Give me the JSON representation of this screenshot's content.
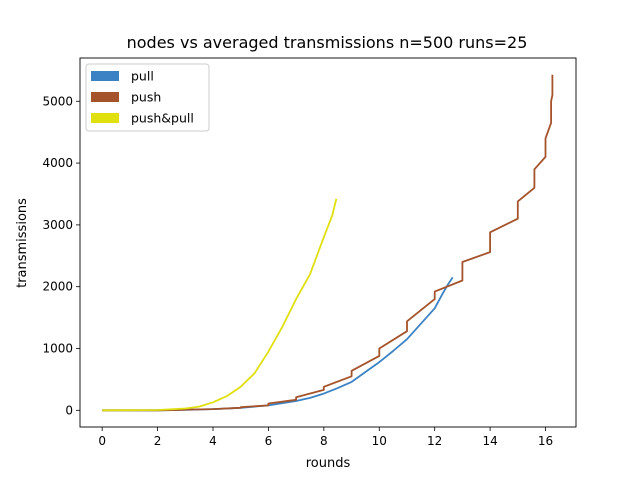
{
  "chart_data": {
    "type": "line",
    "title": "nodes vs averaged transmissions n=500 runs=25",
    "xlabel": "rounds",
    "ylabel": "transmissions",
    "xlim": [
      -0.8,
      17.1
    ],
    "ylim": [
      -270,
      5700
    ],
    "xticks": [
      0,
      2,
      4,
      6,
      8,
      10,
      12,
      14,
      16
    ],
    "yticks": [
      0,
      1000,
      2000,
      3000,
      4000,
      5000
    ],
    "grid": false,
    "legend_position": "top-left",
    "series": [
      {
        "name": "pull",
        "color": "#3a82c4",
        "style": "smooth",
        "points": [
          [
            0,
            0
          ],
          [
            1,
            0
          ],
          [
            2,
            0
          ],
          [
            3,
            6
          ],
          [
            4,
            20
          ],
          [
            5,
            40
          ],
          [
            6,
            80
          ],
          [
            7,
            150
          ],
          [
            7.5,
            200
          ],
          [
            8,
            270
          ],
          [
            8.5,
            360
          ],
          [
            9,
            460
          ],
          [
            9.5,
            620
          ],
          [
            10,
            780
          ],
          [
            10.5,
            960
          ],
          [
            11,
            1150
          ],
          [
            11.5,
            1400
          ],
          [
            12,
            1650
          ],
          [
            12.3,
            1900
          ],
          [
            12.5,
            2050
          ],
          [
            12.65,
            2150
          ]
        ]
      },
      {
        "name": "push",
        "color": "#a5532a",
        "style": "step",
        "points": [
          [
            0,
            0
          ],
          [
            2,
            0
          ],
          [
            2.5,
            4
          ],
          [
            3,
            12
          ],
          [
            4,
            20
          ],
          [
            5,
            50
          ],
          [
            6,
            110
          ],
          [
            7,
            210
          ],
          [
            8,
            380
          ],
          [
            9,
            640
          ],
          [
            10,
            1000
          ],
          [
            11,
            1440
          ],
          [
            12,
            1920
          ],
          [
            13,
            2400
          ],
          [
            14,
            2880
          ],
          [
            15,
            3380
          ],
          [
            15.6,
            3900
          ],
          [
            16,
            4400
          ],
          [
            16.2,
            5000
          ],
          [
            16.25,
            5430
          ]
        ],
        "rises": [
          [
            0,
            0
          ],
          [
            2,
            0
          ],
          [
            2.5,
            4
          ],
          [
            3,
            10
          ],
          [
            4,
            20
          ],
          [
            5,
            40
          ],
          [
            6,
            80
          ],
          [
            7,
            170
          ],
          [
            8,
            330
          ],
          [
            9,
            550
          ],
          [
            10,
            880
          ],
          [
            11,
            1280
          ],
          [
            12,
            1800
          ],
          [
            13,
            2100
          ],
          [
            14,
            2560
          ],
          [
            15,
            3100
          ],
          [
            15.6,
            3600
          ],
          [
            16,
            4100
          ],
          [
            16.2,
            4650
          ],
          [
            16.25,
            5100
          ]
        ]
      },
      {
        "name": "push&pull",
        "color": "#dfe00d",
        "style": "smooth",
        "points": [
          [
            0,
            0
          ],
          [
            1,
            1
          ],
          [
            2,
            5
          ],
          [
            3,
            30
          ],
          [
            3.5,
            60
          ],
          [
            4,
            130
          ],
          [
            4.5,
            230
          ],
          [
            5,
            380
          ],
          [
            5.5,
            600
          ],
          [
            6,
            950
          ],
          [
            6.5,
            1350
          ],
          [
            7,
            1800
          ],
          [
            7.5,
            2200
          ],
          [
            8,
            2800
          ],
          [
            8.3,
            3150
          ],
          [
            8.45,
            3420
          ]
        ]
      }
    ]
  }
}
